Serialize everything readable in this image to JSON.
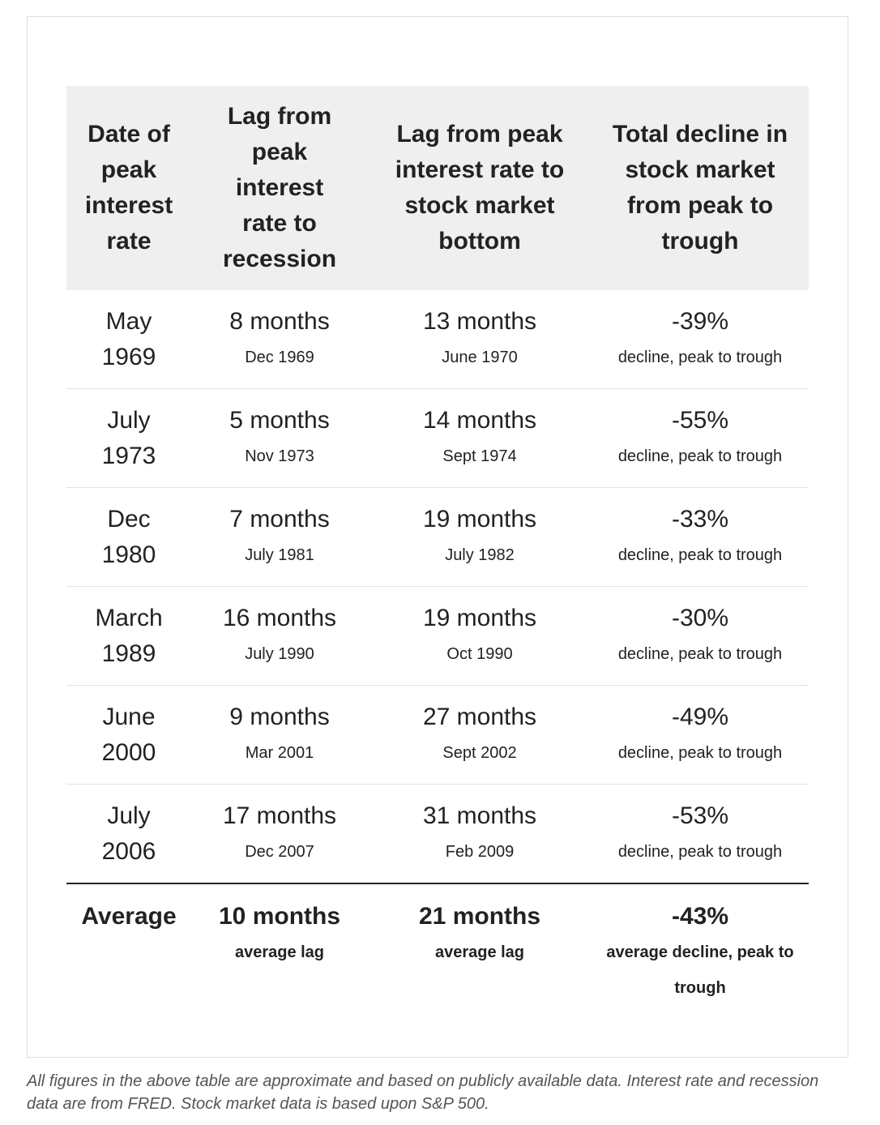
{
  "table": {
    "columns": [
      "Date of peak interest rate",
      "Lag from peak interest rate to recession",
      "Lag from peak interest rate to stock market bottom",
      "Total decline in stock market from peak to trough"
    ],
    "rows": [
      [
        {
          "main": "May 1969"
        },
        {
          "main": "8 months",
          "sub": "Dec 1969"
        },
        {
          "main": "13 months",
          "sub": "June 1970"
        },
        {
          "main": "-39%",
          "sub": "decline, peak to trough"
        }
      ],
      [
        {
          "main": "July 1973"
        },
        {
          "main": "5 months",
          "sub": "Nov 1973"
        },
        {
          "main": "14 months",
          "sub": "Sept 1974"
        },
        {
          "main": "-55%",
          "sub": "decline, peak to trough"
        }
      ],
      [
        {
          "main": "Dec 1980"
        },
        {
          "main": "7 months",
          "sub": "July 1981"
        },
        {
          "main": "19 months",
          "sub": "July 1982"
        },
        {
          "main": "-33%",
          "sub": "decline, peak to trough"
        }
      ],
      [
        {
          "main": "March 1989"
        },
        {
          "main": "16 months",
          "sub": "July 1990"
        },
        {
          "main": "19 months",
          "sub": "Oct 1990"
        },
        {
          "main": "-30%",
          "sub": "decline, peak to trough"
        }
      ],
      [
        {
          "main": "June 2000"
        },
        {
          "main": "9 months",
          "sub": "Mar 2001"
        },
        {
          "main": "27 months",
          "sub": "Sept 2002"
        },
        {
          "main": "-49%",
          "sub": "decline, peak to trough"
        }
      ],
      [
        {
          "main": "July 2006"
        },
        {
          "main": "17 months",
          "sub": "Dec 2007"
        },
        {
          "main": "31 months",
          "sub": "Feb 2009"
        },
        {
          "main": "-53%",
          "sub": "decline, peak to trough"
        }
      ]
    ],
    "average": [
      {
        "main": "Average"
      },
      {
        "main": "10 months",
        "sub": "average lag"
      },
      {
        "main": "21 months",
        "sub": "average lag"
      },
      {
        "main": "-43%",
        "sub": "average decline, peak to trough"
      }
    ]
  },
  "footnote": "All figures in the above table are approximate and based on publicly available data. Interest rate and recession data are from FRED. Stock market data is based upon S&P 500."
}
